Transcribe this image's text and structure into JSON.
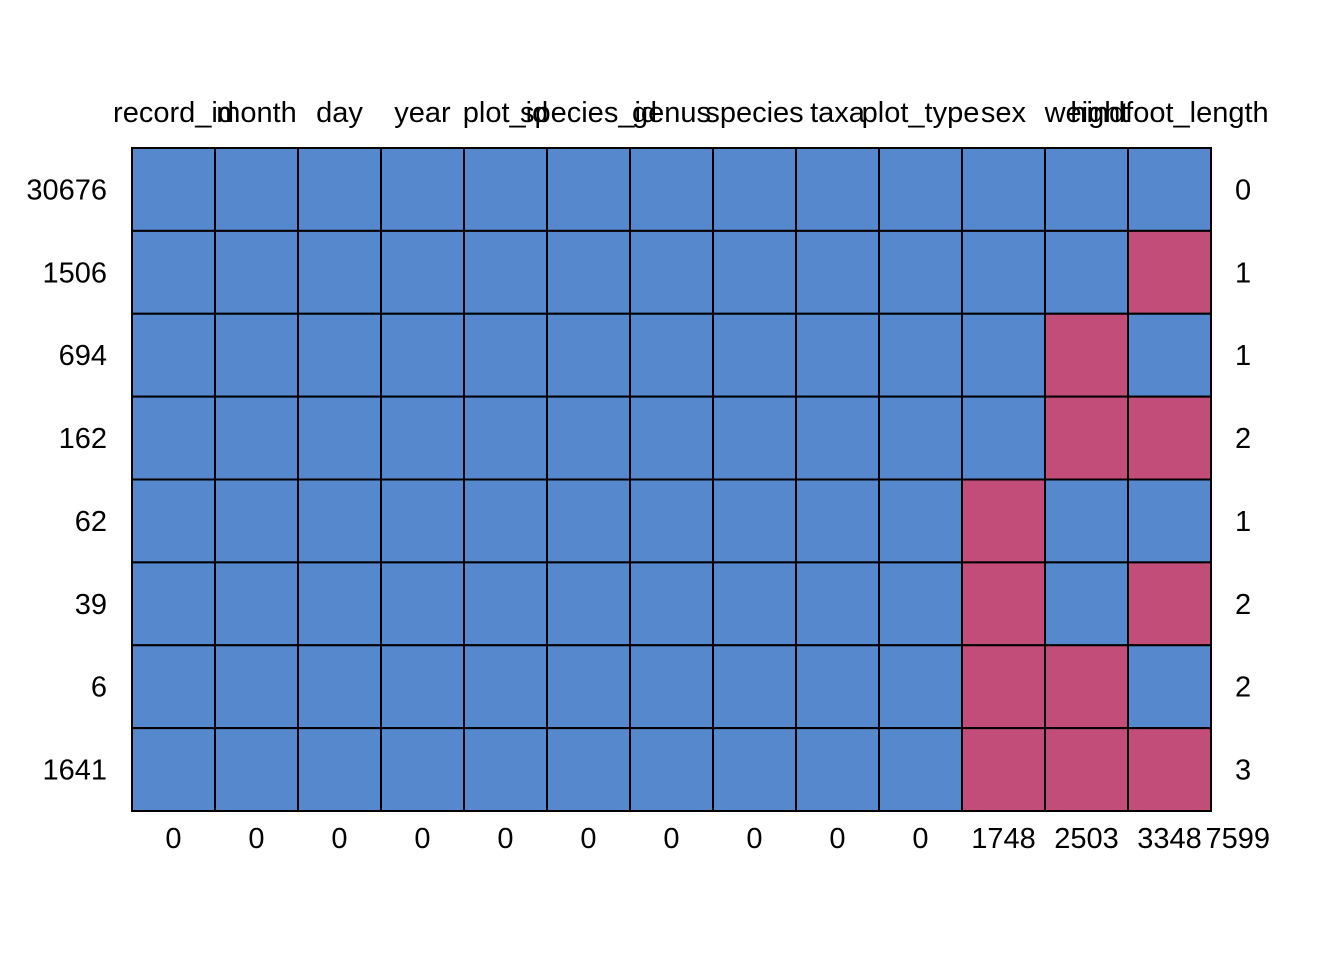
{
  "chart_data": {
    "type": "heatmap",
    "title": "",
    "columns": [
      "record_id",
      "month",
      "day",
      "year",
      "plot_id",
      "species_id",
      "genus",
      "species",
      "taxa",
      "plot_type",
      "sex",
      "weight",
      "hindfoot_length"
    ],
    "row_counts": [
      30676,
      1506,
      694,
      162,
      62,
      39,
      6,
      1641
    ],
    "row_missing_totals": [
      0,
      1,
      1,
      2,
      1,
      2,
      2,
      3
    ],
    "column_missing_totals": [
      0,
      0,
      0,
      0,
      0,
      0,
      0,
      0,
      0,
      0,
      1748,
      2503,
      3348
    ],
    "grand_total_missing": 7599,
    "missing_matrix": [
      [
        0,
        0,
        0,
        0,
        0,
        0,
        0,
        0,
        0,
        0,
        0,
        0,
        0
      ],
      [
        0,
        0,
        0,
        0,
        0,
        0,
        0,
        0,
        0,
        0,
        0,
        0,
        1
      ],
      [
        0,
        0,
        0,
        0,
        0,
        0,
        0,
        0,
        0,
        0,
        0,
        1,
        0
      ],
      [
        0,
        0,
        0,
        0,
        0,
        0,
        0,
        0,
        0,
        0,
        0,
        1,
        1
      ],
      [
        0,
        0,
        0,
        0,
        0,
        0,
        0,
        0,
        0,
        0,
        1,
        0,
        0
      ],
      [
        0,
        0,
        0,
        0,
        0,
        0,
        0,
        0,
        0,
        0,
        1,
        0,
        1
      ],
      [
        0,
        0,
        0,
        0,
        0,
        0,
        0,
        0,
        0,
        0,
        1,
        1,
        0
      ],
      [
        0,
        0,
        0,
        0,
        0,
        0,
        0,
        0,
        0,
        0,
        1,
        1,
        1
      ]
    ],
    "colors": {
      "observed": "#5588CC",
      "missing": "#C24D78"
    }
  }
}
